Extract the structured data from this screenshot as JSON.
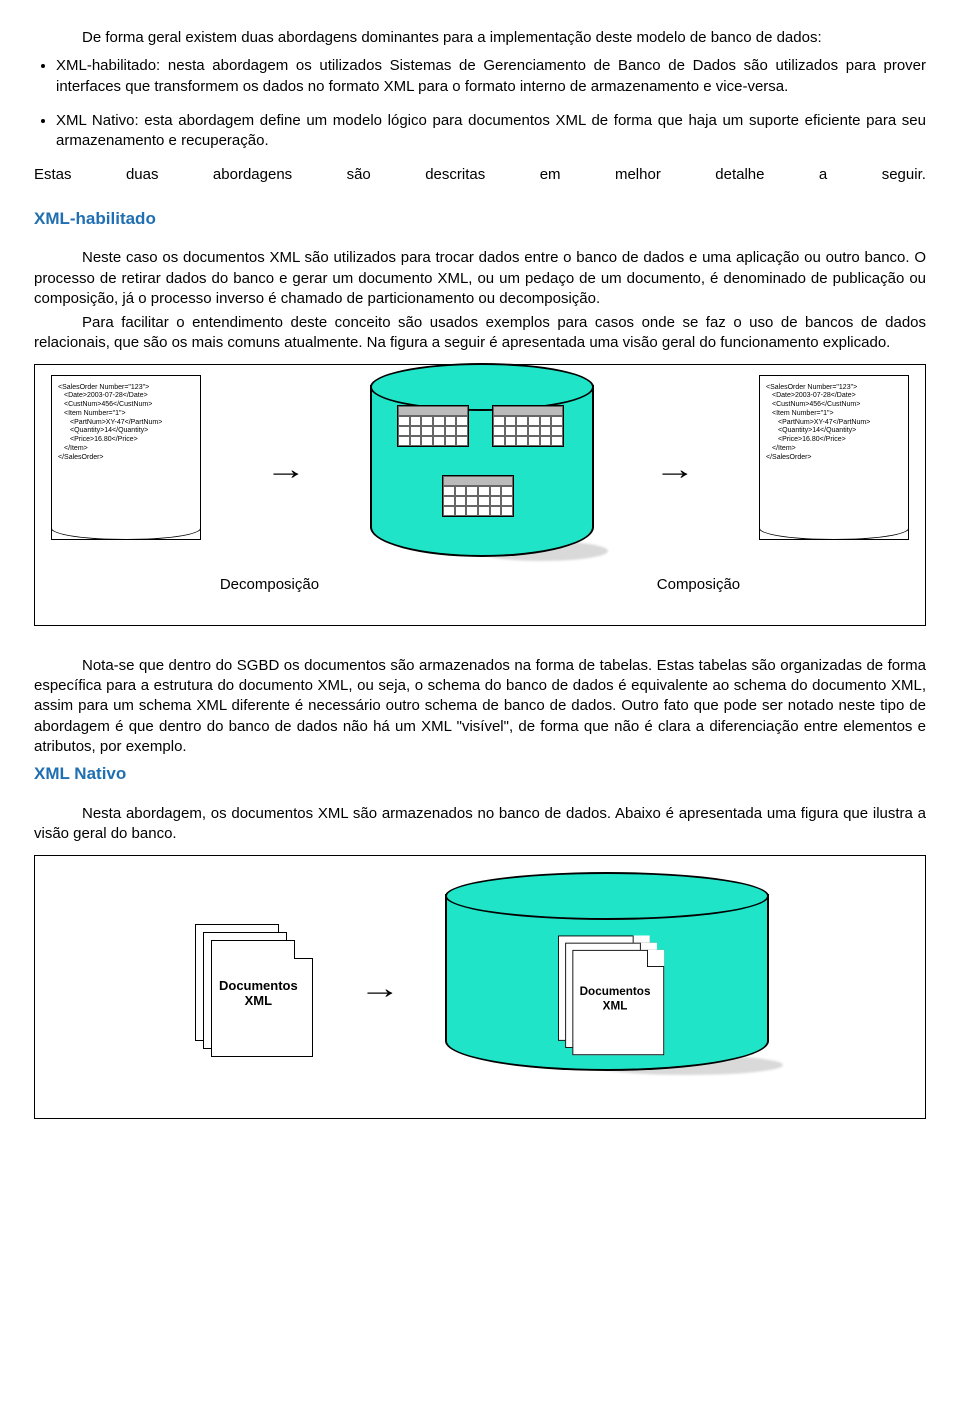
{
  "intro": "De forma geral existem duas abordagens dominantes para a implementação deste modelo de banco de dados:",
  "bullets": [
    "XML-habilitado: nesta abordagem os utilizados Sistemas de Gerenciamento de Banco de Dados são utilizados para prover interfaces que transformem os dados no formato XML para o formato interno de armazenamento e vice-versa.",
    "XML Nativo: esta abordagem define um modelo lógico para documentos XML de forma que haja um suporte eficiente para seu armazenamento e recuperação."
  ],
  "spreadWords": [
    "Estas",
    "duas",
    "abordagens",
    "são",
    "descritas",
    "em",
    "melhor",
    "detalhe",
    "a",
    "seguir."
  ],
  "h2a": "XML-habilitado",
  "h2aColor": "#1f6fb2",
  "p1": "Neste caso os documentos XML são utilizados para trocar dados entre o banco de dados e uma aplicação ou outro banco. O processo de retirar dados do banco e gerar um documento XML, ou um pedaço de um documento, é denominado de publicação ou composição, já o processo inverso é chamado de particionamento ou decomposição.",
  "p2": "Para facilitar o entendimento deste conceito são usados exemplos para casos onde se faz o uso de bancos de dados relacionais, que são os mais comuns atualmente. Na figura a seguir é apresentada uma visão geral do funcionamento explicado.",
  "fig1": {
    "cylColor": "#20e4c8",
    "xmlLeft": [
      {
        "cls": "ln0",
        "t": "<SalesOrder Number=\"123\">"
      },
      {
        "cls": "ln1",
        "t": "<Date>2003-07-28</Date>"
      },
      {
        "cls": "ln1",
        "t": "<CustNum>456</CustNum>"
      },
      {
        "cls": "ln1",
        "t": "<Item Number=\"1\">"
      },
      {
        "cls": "ln2",
        "t": "<PartNum>XY-47</PartNum>"
      },
      {
        "cls": "ln2",
        "t": "<Quantity>14</Quantity>"
      },
      {
        "cls": "ln2",
        "t": "<Price>16.80</Price>"
      },
      {
        "cls": "ln1",
        "t": "</Item>"
      },
      {
        "cls": "ln0",
        "t": "</SalesOrder>"
      }
    ],
    "xmlRight": [
      {
        "cls": "ln0",
        "t": "<SalesOrder Number=\"123\">"
      },
      {
        "cls": "ln1",
        "t": "<Date>2003-07-28</Date>"
      },
      {
        "cls": "ln1",
        "t": "<CustNum>456</CustNum>"
      },
      {
        "cls": "ln1",
        "t": "<Item Number=\"1\">"
      },
      {
        "cls": "ln2",
        "t": "<PartNum>XY-47</PartNum>"
      },
      {
        "cls": "ln2",
        "t": "<Quantity>14</Quantity>"
      },
      {
        "cls": "ln2",
        "t": "<Price>16.80</Price>"
      },
      {
        "cls": "ln1",
        "t": "</Item>"
      },
      {
        "cls": "ln0",
        "t": "</SalesOrder>"
      }
    ],
    "labelLeft": "Decomposição",
    "labelRight": "Composição"
  },
  "p3": "Nota-se que dentro do SGBD os documentos são armazenados na forma de tabelas. Estas tabelas são organizadas de forma específica para a estrutura do documento XML, ou seja, o schema do banco de dados é equivalente ao schema do documento XML, assim para um schema XML diferente é necessário outro schema de banco de dados. Outro fato que pode ser notado neste tipo de abordagem é que dentro do banco de dados não há um XML \"visível\", de forma que não é clara a diferenciação entre elementos e atributos, por exemplo.",
  "h2b": "XML Nativo",
  "h2bColor": "#1f6fb2",
  "p4": "Nesta abordagem, os documentos XML são armazenados no banco de dados. Abaixo é apresentada uma figura que ilustra a visão geral do banco.",
  "fig2": {
    "docLabel1": "Documentos",
    "docLabel2": "XML",
    "innerDocLabel1": "Documentos",
    "innerDocLabel2": "XML"
  }
}
